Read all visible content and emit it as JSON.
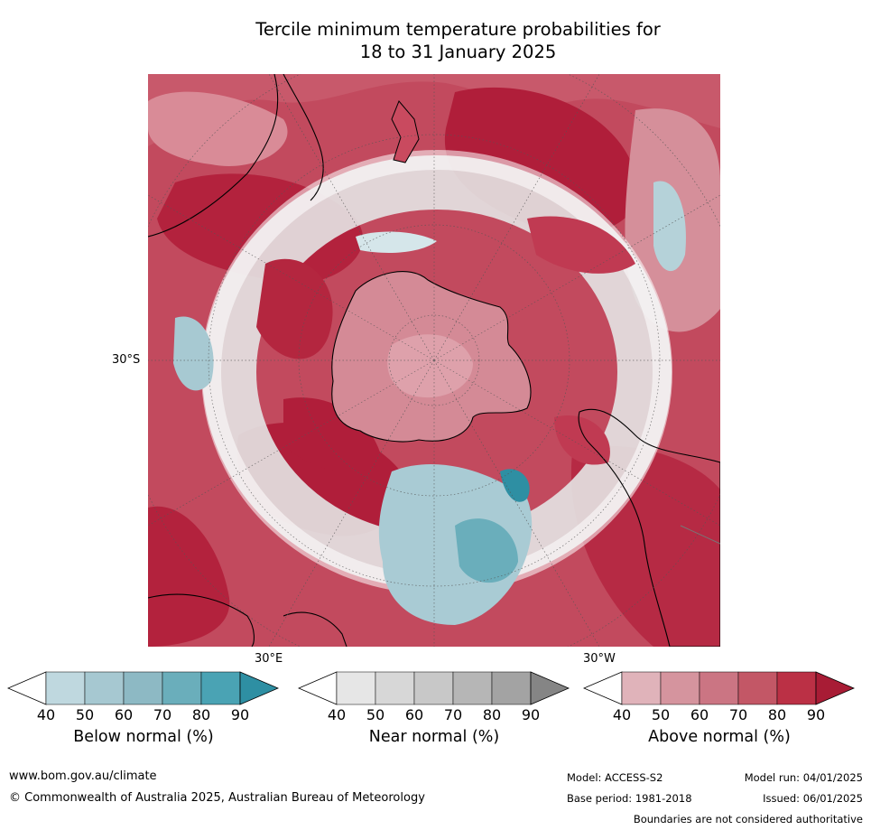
{
  "title": {
    "line1": "Tercile minimum temperature probabilities for",
    "line2": "18 to 31 January 2025"
  },
  "map": {
    "projection": "south-polar stereographic",
    "lat_label": "30°S",
    "lon_label_east": "30°E",
    "lon_label_west": "30°W"
  },
  "colorbars": [
    {
      "label": "Below normal (%)",
      "ticks": [
        "40",
        "50",
        "60",
        "70",
        "80",
        "90"
      ],
      "colors": [
        "#ffffff",
        "#bfd8df",
        "#a6c8d1",
        "#8db9c4",
        "#6aaebb",
        "#4aa3b4",
        "#2e8fa3"
      ]
    },
    {
      "label": "Near normal (%)",
      "ticks": [
        "40",
        "50",
        "60",
        "70",
        "80",
        "90"
      ],
      "colors": [
        "#ffffff",
        "#e6e6e6",
        "#d7d7d7",
        "#c8c8c8",
        "#b6b6b6",
        "#a3a3a3",
        "#858585"
      ]
    },
    {
      "label": "Above normal (%)",
      "ticks": [
        "40",
        "50",
        "60",
        "70",
        "80",
        "90"
      ],
      "colors": [
        "#ffffff",
        "#e0b3ba",
        "#d5949e",
        "#cb7583",
        "#c35766",
        "#bb3045",
        "#a81c35"
      ]
    }
  ],
  "footer": {
    "website": "www.bom.gov.au/climate",
    "copyright": "© Commonwealth of Australia 2025, Australian Bureau of Meteorology",
    "model": "Model: ACCESS-S2",
    "model_run": "Model run: 04/01/2025",
    "base_period": "Base period: 1981-2018",
    "issued": "Issued: 06/01/2025",
    "disclaimer": "Boundaries are not considered authoritative"
  }
}
